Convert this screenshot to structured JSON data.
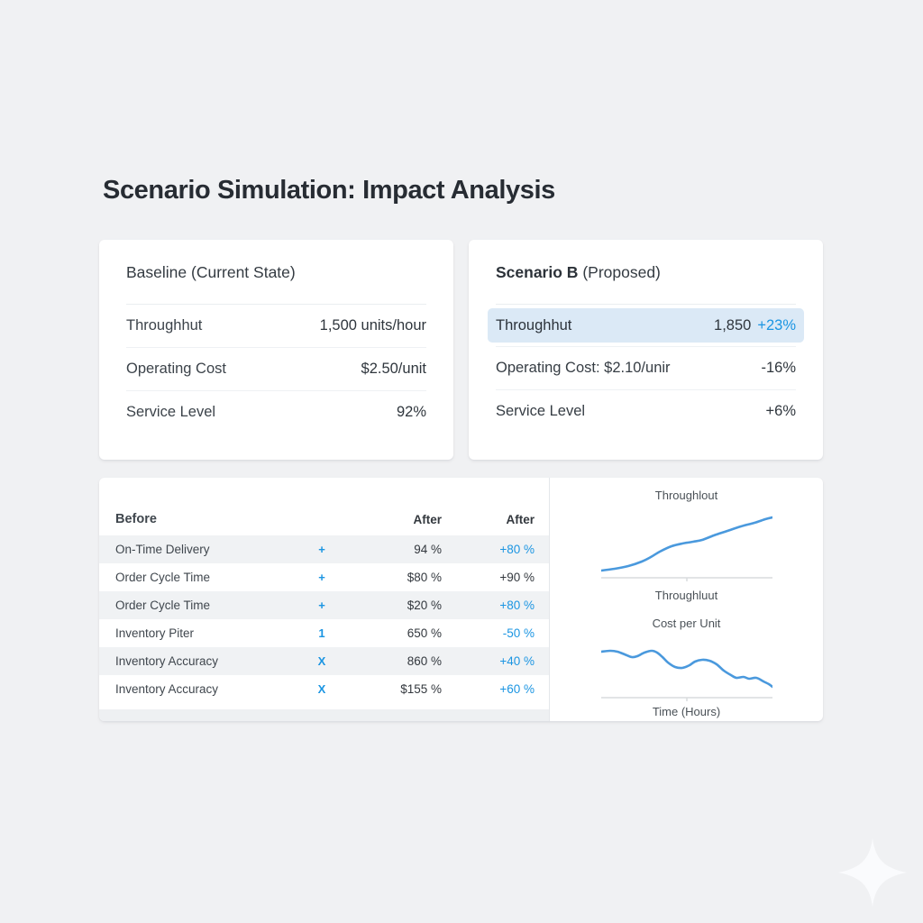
{
  "title": "Scenario Simulation: Impact Analysis",
  "colors": {
    "accent_blue": "#1b95e2",
    "chart_line": "#4a99dd",
    "highlight_row_bg": "#dbe9f6",
    "page_bg": "#f0f1f3",
    "card_bg": "#ffffff",
    "alt_row_bg": "#f0f2f4"
  },
  "baseline_card": {
    "title": "Baseline (Current State)",
    "rows": [
      {
        "label": "Throughhut",
        "value": "1,500 units/hour"
      },
      {
        "label": "Operating Cost",
        "value": "$2.50/unit"
      },
      {
        "label": "Service Level",
        "value": "92%"
      }
    ]
  },
  "scenario_card": {
    "title_bold": "Scenario B",
    "title_normal": "(Proposed)",
    "rows": [
      {
        "label": "Throughhut",
        "value": "1,850",
        "delta": "+23%",
        "highlight": true,
        "delta_blue": true
      },
      {
        "label": "Operating Cost: $2.10/unir",
        "value": "",
        "delta": "-16%",
        "highlight": false,
        "delta_blue": false
      },
      {
        "label": "Service Level",
        "value": "",
        "delta": "+6%",
        "highlight": false,
        "delta_blue": false
      }
    ]
  },
  "metrics_table": {
    "col_headers": {
      "label": "Before",
      "symbol": "",
      "value": "After",
      "delta": "After"
    },
    "rows": [
      {
        "label": "On-Time Delivery",
        "symbol": "+",
        "value": "94 %",
        "delta": "+80 %",
        "delta_blue": true
      },
      {
        "label": "Order Cycle Time",
        "symbol": "+",
        "value": "$80 %",
        "delta": "+90 %",
        "delta_blue": false
      },
      {
        "label": "Order Cycle Time",
        "symbol": "+",
        "value": "$20 %",
        "delta": "+80 %",
        "delta_blue": true
      },
      {
        "label": "Inventory Piter",
        "symbol": "1",
        "value": "650 %",
        "delta": "-50 %",
        "delta_blue": true
      },
      {
        "label": "Inventory Accuracy",
        "symbol": "X",
        "value": "860 %",
        "delta": "+40 %",
        "delta_blue": true
      },
      {
        "label": "Inventory Accuracy",
        "symbol": "X",
        "value": "$155 %",
        "delta": "+60 %",
        "delta_blue": true
      }
    ]
  },
  "chart_data": [
    {
      "type": "line",
      "id": "throughput",
      "title": "Throughlout",
      "xlabel": "Throughluut",
      "trend": "rising",
      "points": [
        [
          0,
          63
        ],
        [
          15,
          61
        ],
        [
          30,
          58
        ],
        [
          45,
          53
        ],
        [
          55,
          48
        ],
        [
          65,
          42
        ],
        [
          78,
          36
        ],
        [
          90,
          33
        ],
        [
          102,
          31
        ],
        [
          112,
          29
        ],
        [
          125,
          24
        ],
        [
          140,
          19
        ],
        [
          155,
          14
        ],
        [
          170,
          10
        ],
        [
          182,
          6
        ],
        [
          190,
          4
        ]
      ]
    },
    {
      "type": "line",
      "id": "cost_per_unit",
      "title": "Cost per Unit",
      "xlabel": "Time (Hours)",
      "trend": "falling",
      "points": [
        [
          0,
          17
        ],
        [
          10,
          16
        ],
        [
          18,
          17
        ],
        [
          26,
          20
        ],
        [
          34,
          23
        ],
        [
          40,
          22
        ],
        [
          48,
          18
        ],
        [
          56,
          16
        ],
        [
          62,
          18
        ],
        [
          68,
          23
        ],
        [
          74,
          29
        ],
        [
          82,
          34
        ],
        [
          90,
          35
        ],
        [
          98,
          32
        ],
        [
          104,
          28
        ],
        [
          112,
          26
        ],
        [
          120,
          27
        ],
        [
          128,
          31
        ],
        [
          136,
          38
        ],
        [
          144,
          43
        ],
        [
          150,
          46
        ],
        [
          158,
          45
        ],
        [
          164,
          47
        ],
        [
          172,
          46
        ],
        [
          180,
          50
        ],
        [
          186,
          53
        ],
        [
          190,
          56
        ]
      ]
    }
  ],
  "icons": {
    "sparkle": "four-pointed-star"
  }
}
